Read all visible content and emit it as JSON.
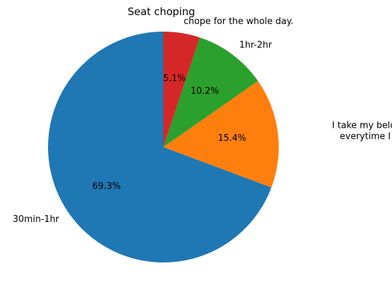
{
  "chart_data": {
    "type": "pie",
    "title": "Seat choping",
    "start_angle_deg": 90,
    "direction": "counterclockwise",
    "slices": [
      {
        "label": "30min-1hr",
        "label_lines": [
          "30min-1hr"
        ],
        "value": 69.3,
        "pct_label": "69.3%",
        "color": "#1f77b4"
      },
      {
        "label": "I take my belongings everytime I leave",
        "label_lines": [
          "I take my belongings",
          "everytime I leave"
        ],
        "value": 15.4,
        "pct_label": "15.4%",
        "color": "#ff7f0e"
      },
      {
        "label": "1hr-2hr",
        "label_lines": [
          "1hr-2hr"
        ],
        "value": 10.2,
        "pct_label": "10.2%",
        "color": "#2ca02c"
      },
      {
        "label": "chope  for the whole day.",
        "label_lines": [
          "chope  for the whole day."
        ],
        "value": 5.1,
        "pct_label": "5.1%",
        "color": "#d62728"
      }
    ]
  }
}
